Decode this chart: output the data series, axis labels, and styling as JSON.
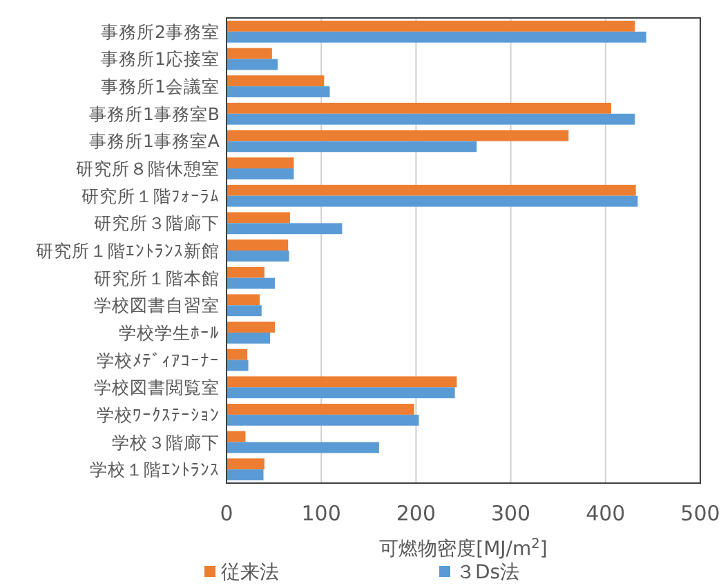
{
  "chart_data": {
    "type": "bar",
    "orientation": "horizontal",
    "categories": [
      "事務所2事務室",
      "事務所1応接室",
      "事務所1会議室",
      "事務所1事務室B",
      "事務所1事務室A",
      "研究所８階休憩室",
      "研究所１階ﾌｫｰﾗﾑ",
      "研究所３階廊下",
      "研究所１階ｴﾝﾄﾗﾝｽ新館",
      "研究所１階本館",
      "学校図書自習室",
      "学校学生ﾎｰﾙ",
      "学校ﾒﾃﾞｨｱｺｰﾅｰ",
      "学校図書閲覧室",
      "学校ﾜｰｸｽﾃｰｼｮﾝ",
      "学校３階廊下",
      "学校１階ｴﾝﾄﾗﾝｽ"
    ],
    "series": [
      {
        "name": "従来法",
        "color": "#ed7d31",
        "values": [
          431,
          48,
          103,
          406,
          361,
          71,
          432,
          67,
          65,
          40,
          35,
          51,
          22,
          243,
          198,
          20,
          40
        ]
      },
      {
        "name": "３Ds法",
        "color": "#5b9bd5",
        "values": [
          443,
          54,
          109,
          431,
          264,
          71,
          434,
          122,
          66,
          51,
          37,
          46,
          23,
          241,
          203,
          161,
          39
        ]
      }
    ],
    "xlabel": "可燃物密度[MJ/m$^{2}$]",
    "xlim": [
      0,
      500
    ],
    "xticks": [
      0,
      100,
      200,
      300,
      400,
      500
    ],
    "grid": "x",
    "legend": "bottom"
  }
}
